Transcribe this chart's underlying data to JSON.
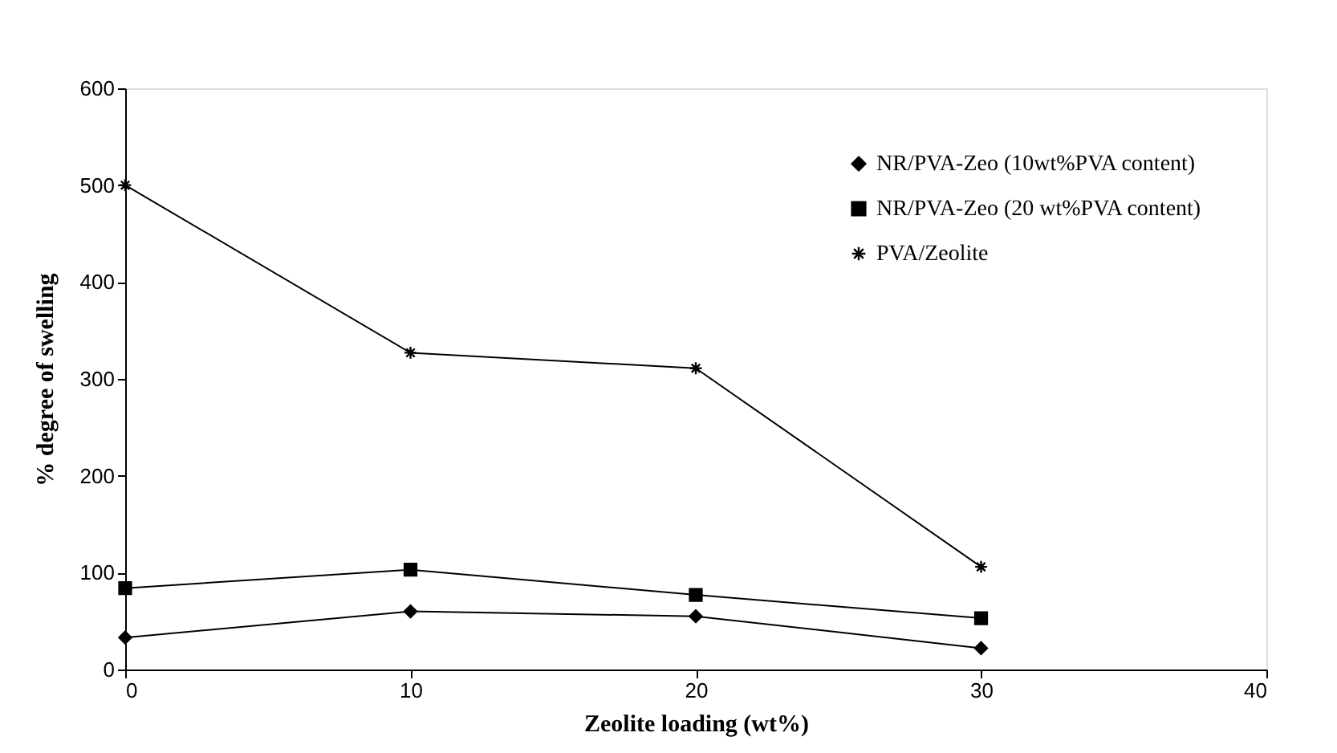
{
  "chart_data": {
    "type": "line",
    "xlabel": "Zeolite loading (wt%)",
    "ylabel": "% degree of swelling",
    "x": [
      0,
      10,
      20,
      30
    ],
    "xlim": [
      0,
      40
    ],
    "xticks": [
      0,
      10,
      20,
      30,
      40
    ],
    "ylim": [
      0,
      600
    ],
    "yticks": [
      0,
      100,
      200,
      300,
      400,
      500,
      600
    ],
    "grid": false,
    "legend": "top right",
    "line_style": "solid",
    "series": [
      {
        "name": "NR/PVA-Zeo (10wt%PVA content)",
        "color": "#000000",
        "marker": "diamond",
        "values": [
          33,
          60,
          55,
          22
        ]
      },
      {
        "name": "NR/PVA-Zeo (20 wt%PVA content)",
        "color": "#000000",
        "marker": "square",
        "values": [
          84,
          103,
          77,
          53
        ]
      },
      {
        "name": "PVA/Zeolite",
        "color": "#000000",
        "marker": "cross",
        "values": [
          500,
          327,
          311,
          106
        ]
      }
    ]
  }
}
